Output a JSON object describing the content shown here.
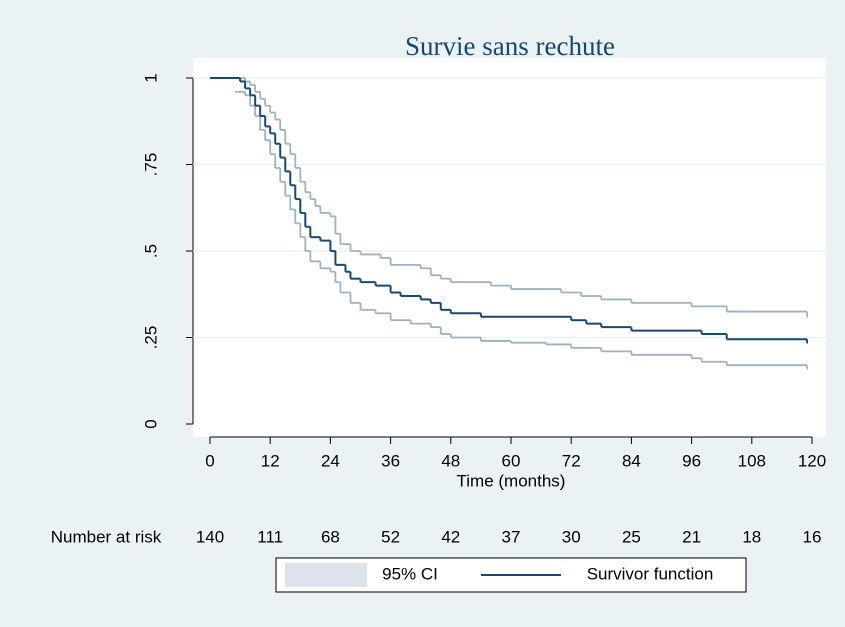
{
  "chart_data": {
    "type": "step",
    "title": "Survie sans rechute",
    "x_label": "Time (months)",
    "xlim": [
      0,
      120
    ],
    "xticks": [
      0,
      12,
      24,
      36,
      48,
      60,
      72,
      84,
      96,
      108,
      120
    ],
    "ylim": [
      0,
      1
    ],
    "yticks": [
      0,
      {
        "value": 0.25,
        "label": ".25"
      },
      {
        "value": 0.5,
        "label": ".5"
      },
      {
        "value": 0.75,
        "label": ".75"
      },
      1
    ],
    "grid": true,
    "series": [
      {
        "name": "95% CI",
        "color": "#9fb1c1",
        "x": [
          0,
          6,
          7,
          8,
          9,
          10,
          11,
          12,
          13,
          14,
          15,
          16,
          17,
          18,
          19,
          20,
          21,
          22,
          24,
          25,
          26,
          28,
          30,
          34,
          36,
          42,
          44,
          46,
          48,
          56,
          60,
          70,
          74,
          78,
          84,
          96,
          103,
          118,
          119
        ],
        "values": [
          1,
          1,
          0.99,
          0.98,
          0.96,
          0.94,
          0.92,
          0.9,
          0.88,
          0.85,
          0.81,
          0.78,
          0.74,
          0.7,
          0.67,
          0.65,
          0.63,
          0.61,
          0.6,
          0.55,
          0.52,
          0.5,
          0.49,
          0.48,
          0.46,
          0.45,
          0.43,
          0.42,
          0.41,
          0.4,
          0.39,
          0.38,
          0.37,
          0.36,
          0.35,
          0.34,
          0.325,
          0.325,
          0.31
        ]
      },
      {
        "name": "95% CI",
        "color": "#9fb1c1",
        "x": [
          5,
          7,
          8,
          9,
          10,
          11,
          12,
          13,
          14,
          15,
          16,
          17,
          18,
          19,
          20,
          22,
          24,
          25,
          26,
          28,
          30,
          33,
          36,
          40,
          44,
          46,
          48,
          54,
          60,
          67,
          72,
          78,
          84,
          96,
          98,
          103,
          118,
          119
        ],
        "values": [
          0.96,
          0.95,
          0.92,
          0.89,
          0.85,
          0.82,
          0.78,
          0.74,
          0.7,
          0.66,
          0.62,
          0.58,
          0.54,
          0.5,
          0.47,
          0.45,
          0.44,
          0.41,
          0.38,
          0.35,
          0.33,
          0.32,
          0.3,
          0.29,
          0.28,
          0.26,
          0.25,
          0.24,
          0.235,
          0.23,
          0.22,
          0.21,
          0.2,
          0.19,
          0.18,
          0.17,
          0.17,
          0.16
        ]
      },
      {
        "name": "Survivor function",
        "color": "#1a476f",
        "x": [
          0,
          4,
          6,
          7,
          8,
          9,
          10,
          11,
          12,
          13,
          14,
          15,
          16,
          17,
          18,
          19,
          20,
          22,
          24,
          25,
          27,
          28,
          30,
          33,
          36,
          38,
          42,
          44,
          46,
          48,
          54,
          72,
          75,
          78,
          84,
          98,
          103,
          118,
          119
        ],
        "values": [
          1,
          1,
          0.99,
          0.97,
          0.95,
          0.92,
          0.89,
          0.86,
          0.84,
          0.81,
          0.77,
          0.73,
          0.69,
          0.65,
          0.61,
          0.57,
          0.54,
          0.53,
          0.5,
          0.46,
          0.44,
          0.42,
          0.41,
          0.4,
          0.38,
          0.37,
          0.36,
          0.35,
          0.33,
          0.32,
          0.31,
          0.3,
          0.29,
          0.28,
          0.27,
          0.26,
          0.245,
          0.245,
          0.235
        ]
      }
    ],
    "at_risk": {
      "label": "Number at risk",
      "times": [
        0,
        12,
        24,
        36,
        48,
        60,
        72,
        84,
        96,
        108,
        120
      ],
      "counts": [
        140,
        111,
        68,
        52,
        42,
        37,
        30,
        25,
        21,
        18,
        16
      ]
    }
  }
}
